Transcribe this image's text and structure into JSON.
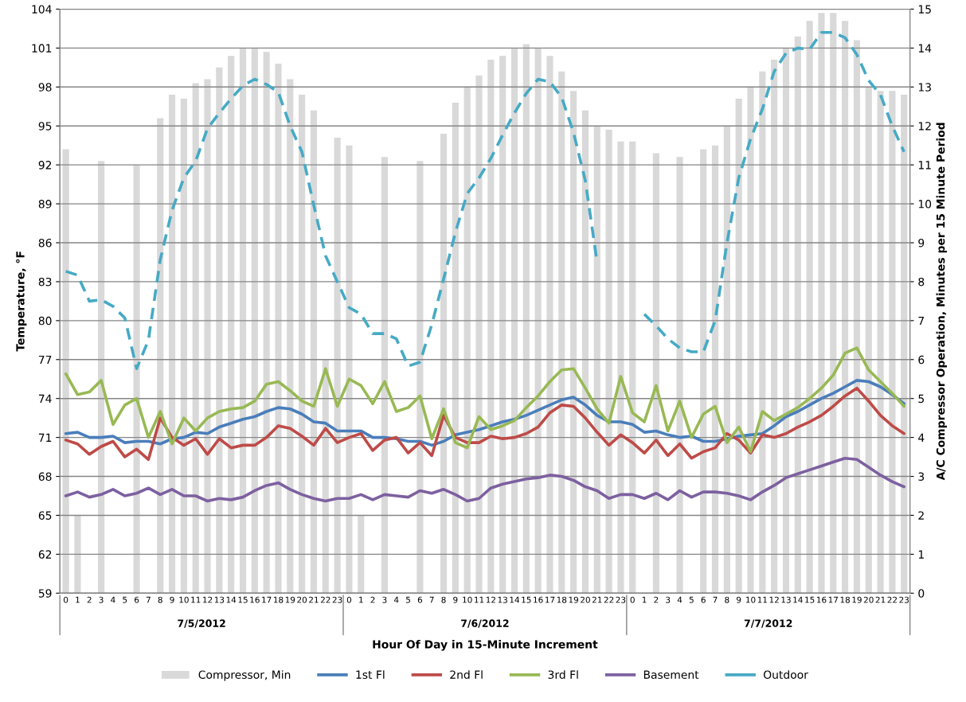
{
  "chart_data": {
    "type": "line",
    "xlabel": "Hour Of Day in 15-Minute Increment",
    "ylabel": "Temperature, °F",
    "y2label": "A/C Compressor Operation, Minutes per 15 Minute Period",
    "categories": [
      "0",
      "1",
      "2",
      "3",
      "4",
      "5",
      "6",
      "7",
      "8",
      "9",
      "10",
      "11",
      "12",
      "13",
      "14",
      "15",
      "16",
      "17",
      "18",
      "19",
      "20",
      "21",
      "22",
      "23",
      "0",
      "1",
      "2",
      "3",
      "4",
      "5",
      "6",
      "7",
      "8",
      "9",
      "10",
      "11",
      "12",
      "13",
      "14",
      "15",
      "16",
      "17",
      "18",
      "19",
      "20",
      "21",
      "22",
      "23",
      "0",
      "1",
      "2",
      "3",
      "4",
      "5",
      "6",
      "7",
      "8",
      "9",
      "10",
      "11",
      "12",
      "13",
      "14",
      "15",
      "16",
      "17",
      "18",
      "19",
      "20",
      "21",
      "22",
      "23"
    ],
    "annotations": [
      "7/5/2012",
      "7/6/2012",
      "7/7/2012"
    ],
    "ylim": [
      59,
      104
    ],
    "yticks": [
      59,
      62,
      65,
      68,
      71,
      74,
      77,
      80,
      83,
      86,
      89,
      92,
      95,
      98,
      101,
      104
    ],
    "y2lim": [
      0,
      15
    ],
    "y2ticks": [
      0,
      1,
      2,
      3,
      4,
      5,
      6,
      7,
      8,
      9,
      10,
      11,
      12,
      13,
      14,
      15
    ],
    "grid": "y",
    "legend": "bottom",
    "series": [
      {
        "name": "Compressor, Min",
        "type": "bar",
        "axis": "y2",
        "color": "#d9d9d9",
        "values": [
          11.4,
          2.0,
          0,
          11.1,
          0,
          0,
          11.0,
          0,
          12.2,
          12.8,
          12.7,
          13.1,
          13.2,
          13.5,
          13.8,
          14.0,
          14.0,
          13.9,
          13.6,
          13.2,
          12.8,
          12.4,
          6.0,
          11.7,
          11.5,
          2.0,
          0,
          11.2,
          0,
          0,
          11.1,
          0,
          11.8,
          12.6,
          13.0,
          13.3,
          13.7,
          13.8,
          14.0,
          14.1,
          14.0,
          13.8,
          13.4,
          12.9,
          12.4,
          12.0,
          11.9,
          11.6,
          11.6,
          0,
          11.3,
          0,
          11.2,
          0,
          11.4,
          11.5,
          12.0,
          12.7,
          13.0,
          13.4,
          13.7,
          14.0,
          14.3,
          14.7,
          14.9,
          14.9,
          14.7,
          14.2,
          13.0,
          12.9,
          12.9,
          12.8
        ]
      },
      {
        "name": "1st Fl",
        "color": "#4a7ebb",
        "values": [
          71.3,
          71.4,
          71.0,
          71.0,
          71.1,
          70.6,
          70.7,
          70.7,
          70.5,
          70.9,
          71.0,
          71.4,
          71.3,
          71.8,
          72.1,
          72.4,
          72.6,
          73.0,
          73.3,
          73.2,
          72.8,
          72.2,
          72.1,
          71.5,
          71.5,
          71.5,
          71.0,
          71.0,
          70.9,
          70.7,
          70.7,
          70.4,
          70.7,
          71.2,
          71.4,
          71.6,
          71.9,
          72.2,
          72.4,
          72.7,
          73.1,
          73.5,
          73.9,
          74.1,
          73.5,
          72.7,
          72.2,
          72.2,
          72.0,
          71.4,
          71.5,
          71.2,
          71.0,
          71.1,
          70.7,
          70.7,
          70.9,
          71.1,
          71.2,
          71.3,
          71.9,
          72.6,
          73.0,
          73.5,
          74.0,
          74.4,
          74.9,
          75.4,
          75.3,
          74.9,
          74.3,
          73.6
        ]
      },
      {
        "name": "2nd Fl",
        "color": "#be4b48",
        "values": [
          70.8,
          70.5,
          69.7,
          70.3,
          70.7,
          69.5,
          70.1,
          69.3,
          72.5,
          71.0,
          70.4,
          70.9,
          69.7,
          70.9,
          70.2,
          70.4,
          70.4,
          71.0,
          71.9,
          71.7,
          71.1,
          70.4,
          71.7,
          70.6,
          71.0,
          71.3,
          70.0,
          70.8,
          71.0,
          69.8,
          70.6,
          69.6,
          72.7,
          71.0,
          70.6,
          70.6,
          71.1,
          70.9,
          71.0,
          71.3,
          71.8,
          72.9,
          73.5,
          73.4,
          72.5,
          71.4,
          70.4,
          71.2,
          70.6,
          69.8,
          70.8,
          69.6,
          70.5,
          69.4,
          69.9,
          70.2,
          71.3,
          70.8,
          69.8,
          71.2,
          71.0,
          71.3,
          71.8,
          72.2,
          72.7,
          73.4,
          74.2,
          74.8,
          73.8,
          72.7,
          71.9,
          71.3
        ]
      },
      {
        "name": "3rd Fl",
        "color": "#98b954",
        "values": [
          75.9,
          74.3,
          74.5,
          75.4,
          72.0,
          73.5,
          74.0,
          71.0,
          73.0,
          70.5,
          72.5,
          71.5,
          72.5,
          73.0,
          73.2,
          73.3,
          73.8,
          75.1,
          75.3,
          74.6,
          73.8,
          73.4,
          76.3,
          73.4,
          75.5,
          75.0,
          73.6,
          75.3,
          73.0,
          73.3,
          74.2,
          70.9,
          73.2,
          70.6,
          70.2,
          72.6,
          71.6,
          71.9,
          72.3,
          73.3,
          74.2,
          75.3,
          76.2,
          76.3,
          74.8,
          73.2,
          72.1,
          75.7,
          72.9,
          72.2,
          75.0,
          71.5,
          73.8,
          71.0,
          72.8,
          73.4,
          70.6,
          71.8,
          69.9,
          73.0,
          72.3,
          72.8,
          73.3,
          74.0,
          74.8,
          75.8,
          77.5,
          77.9,
          76.2,
          75.3,
          74.4,
          73.4
        ]
      },
      {
        "name": "Basement",
        "color": "#7d60a0",
        "values": [
          66.5,
          66.8,
          66.4,
          66.6,
          67.0,
          66.5,
          66.7,
          67.1,
          66.6,
          67.0,
          66.5,
          66.5,
          66.1,
          66.3,
          66.2,
          66.4,
          66.9,
          67.3,
          67.5,
          67.0,
          66.6,
          66.3,
          66.1,
          66.3,
          66.3,
          66.6,
          66.2,
          66.6,
          66.5,
          66.4,
          66.9,
          66.7,
          67.0,
          66.6,
          66.1,
          66.3,
          67.1,
          67.4,
          67.6,
          67.8,
          67.9,
          68.1,
          68.0,
          67.7,
          67.2,
          66.9,
          66.3,
          66.6,
          66.6,
          66.3,
          66.7,
          66.2,
          66.9,
          66.4,
          66.8,
          66.8,
          66.7,
          66.5,
          66.2,
          66.8,
          67.3,
          67.9,
          68.2,
          68.5,
          68.8,
          69.1,
          69.4,
          69.3,
          68.7,
          68.1,
          67.6,
          67.2
        ]
      },
      {
        "name": "Outdoor",
        "line_style": "dashed",
        "color": "#46aac5",
        "values": [
          83.8,
          83.5,
          81.5,
          81.6,
          81.1,
          80.2,
          76.3,
          78.5,
          84.7,
          88.5,
          91.0,
          92.3,
          94.8,
          96.0,
          97.1,
          98.1,
          98.6,
          98.2,
          97.6,
          95.0,
          93.0,
          88.9,
          85.0,
          83.0,
          81.0,
          80.5,
          79.0,
          79.0,
          78.6,
          76.5,
          76.8,
          79.7,
          83.2,
          86.8,
          89.8,
          91.0,
          92.5,
          94.3,
          96.0,
          97.5,
          98.6,
          98.4,
          97.2,
          94.5,
          90.8,
          84.5,
          null,
          null,
          null,
          80.5,
          79.6,
          78.6,
          77.9,
          77.6,
          77.6,
          80.0,
          86.0,
          91.0,
          94.0,
          96.3,
          99.2,
          100.6,
          101.0,
          100.9,
          102.2,
          102.2,
          101.8,
          100.5,
          98.5,
          97.4,
          95.0,
          93.0
        ]
      }
    ]
  }
}
